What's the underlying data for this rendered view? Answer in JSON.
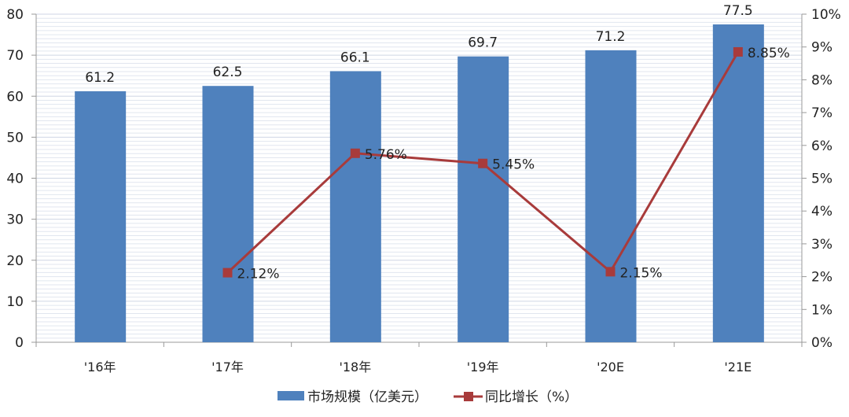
{
  "chart_data": {
    "type": "bar+line",
    "categories": [
      "'16年",
      "'17年",
      "'18年",
      "'19年",
      "'20E",
      "'21E"
    ],
    "series": [
      {
        "name": "市场规模（亿美元）",
        "type": "bar",
        "axis": "left",
        "color": "#4F81BD",
        "values": [
          61.2,
          62.5,
          66.1,
          69.7,
          71.2,
          77.5
        ],
        "labels": [
          "61.2",
          "62.5",
          "66.1",
          "69.7",
          "71.2",
          "77.5"
        ]
      },
      {
        "name": "同比增长（%）",
        "type": "line",
        "axis": "right",
        "color": "#A83B3B",
        "values": [
          null,
          2.12,
          5.76,
          5.45,
          2.15,
          8.85
        ],
        "labels": [
          "",
          "2.12%",
          "5.76%",
          "5.45%",
          "2.15%",
          "8.85%"
        ]
      }
    ],
    "ylim_left": [
      0,
      80
    ],
    "yticks_left": [
      "0",
      "10",
      "20",
      "30",
      "40",
      "50",
      "60",
      "70",
      "80"
    ],
    "ylim_right": [
      0,
      10
    ],
    "yticks_right": [
      "0%",
      "1%",
      "2%",
      "3%",
      "4%",
      "5%",
      "6%",
      "7%",
      "8%",
      "9%",
      "10%"
    ],
    "grid": true,
    "legend": "bottom"
  }
}
